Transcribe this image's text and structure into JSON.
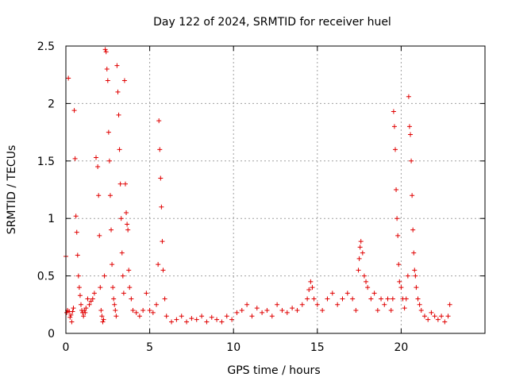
{
  "chart_data": {
    "type": "scatter",
    "title": "Day 122 of 2024, SRMTID for receiver huel",
    "xlabel": "GPS time / hours",
    "ylabel": "SRMTID / TECUs",
    "xlim": [
      0,
      25
    ],
    "ylim": [
      0,
      2.5
    ],
    "x_ticks": [
      0,
      5,
      10,
      15,
      20
    ],
    "x_tick_labels": [
      "0",
      "5",
      "10",
      "15",
      "20"
    ],
    "y_ticks": [
      0,
      0.5,
      1,
      1.5,
      2,
      2.5
    ],
    "y_tick_labels": [
      "0",
      "0.5",
      "1",
      "1.5",
      "2",
      "2.5"
    ],
    "grid": true,
    "legend": "none",
    "marker": "plus",
    "color": "#e00000",
    "series": [
      {
        "name": "huel",
        "x": [
          0.0,
          0.05,
          0.1,
          0.15,
          0.2,
          0.25,
          0.3,
          0.35,
          0.4,
          0.45,
          0.5,
          0.55,
          0.6,
          0.65,
          0.7,
          0.75,
          0.8,
          0.85,
          0.9,
          0.95,
          1.0,
          1.05,
          1.1,
          1.15,
          1.2,
          1.3,
          1.4,
          1.5,
          1.6,
          1.7,
          1.8,
          1.9,
          1.95,
          2.0,
          2.05,
          2.1,
          2.15,
          2.2,
          2.25,
          2.3,
          2.35,
          2.4,
          2.45,
          2.5,
          2.55,
          2.6,
          2.65,
          2.7,
          2.75,
          2.8,
          2.85,
          2.9,
          2.95,
          3.0,
          3.05,
          3.1,
          3.15,
          3.2,
          3.25,
          3.3,
          3.35,
          3.4,
          3.45,
          3.5,
          3.55,
          3.6,
          3.65,
          3.7,
          3.75,
          3.8,
          3.9,
          4.0,
          4.2,
          4.4,
          4.6,
          4.8,
          5.0,
          5.2,
          5.4,
          5.5,
          5.55,
          5.6,
          5.65,
          5.7,
          5.75,
          5.8,
          5.9,
          6.0,
          6.3,
          6.6,
          6.9,
          7.2,
          7.5,
          7.8,
          8.1,
          8.4,
          8.7,
          9.0,
          9.3,
          9.6,
          9.9,
          10.2,
          10.5,
          10.8,
          11.1,
          11.4,
          11.7,
          12.0,
          12.3,
          12.6,
          12.9,
          13.2,
          13.5,
          13.8,
          14.1,
          14.4,
          14.5,
          14.6,
          14.7,
          14.8,
          15.0,
          15.3,
          15.6,
          15.9,
          16.2,
          16.5,
          16.8,
          17.1,
          17.3,
          17.45,
          17.5,
          17.55,
          17.6,
          17.7,
          17.8,
          17.9,
          18.0,
          18.2,
          18.4,
          18.6,
          18.8,
          19.0,
          19.2,
          19.4,
          19.5,
          19.55,
          19.6,
          19.65,
          19.7,
          19.75,
          19.8,
          19.85,
          19.9,
          20.0,
          20.1,
          20.2,
          20.3,
          20.4,
          20.45,
          20.5,
          20.55,
          20.6,
          20.65,
          20.7,
          20.75,
          20.8,
          20.85,
          20.9,
          21.0,
          21.1,
          21.2,
          21.4,
          21.6,
          21.8,
          22.0,
          22.2,
          22.4,
          22.6,
          22.8,
          22.9
        ],
        "y": [
          0.67,
          0.18,
          0.2,
          2.22,
          0.19,
          0.14,
          0.16,
          0.1,
          0.19,
          0.22,
          1.94,
          1.52,
          1.02,
          0.88,
          0.68,
          0.5,
          0.4,
          0.33,
          0.25,
          0.2,
          0.18,
          0.15,
          0.2,
          0.18,
          0.22,
          0.3,
          0.25,
          0.28,
          0.3,
          0.35,
          1.53,
          1.45,
          1.2,
          0.85,
          0.4,
          0.2,
          0.15,
          0.1,
          0.12,
          0.5,
          2.47,
          2.45,
          2.3,
          2.2,
          1.75,
          1.5,
          1.2,
          0.9,
          0.6,
          0.4,
          0.3,
          0.25,
          0.2,
          0.15,
          2.33,
          2.1,
          1.9,
          1.6,
          1.3,
          1.0,
          0.7,
          0.5,
          0.35,
          2.2,
          1.3,
          1.05,
          0.95,
          0.9,
          0.55,
          0.4,
          0.3,
          0.2,
          0.18,
          0.15,
          0.2,
          0.35,
          0.2,
          0.18,
          0.25,
          0.6,
          1.85,
          1.6,
          1.35,
          1.1,
          0.8,
          0.55,
          0.3,
          0.15,
          0.1,
          0.12,
          0.15,
          0.1,
          0.13,
          0.12,
          0.15,
          0.1,
          0.14,
          0.12,
          0.1,
          0.15,
          0.12,
          0.18,
          0.2,
          0.25,
          0.15,
          0.22,
          0.18,
          0.2,
          0.15,
          0.25,
          0.2,
          0.18,
          0.22,
          0.2,
          0.25,
          0.3,
          0.38,
          0.45,
          0.4,
          0.3,
          0.25,
          0.2,
          0.3,
          0.35,
          0.25,
          0.3,
          0.35,
          0.3,
          0.2,
          0.55,
          0.65,
          0.75,
          0.8,
          0.7,
          0.5,
          0.45,
          0.4,
          0.3,
          0.35,
          0.2,
          0.3,
          0.25,
          0.3,
          0.2,
          0.3,
          1.93,
          1.8,
          1.6,
          1.25,
          1.0,
          0.85,
          0.6,
          0.45,
          0.4,
          0.3,
          0.22,
          0.3,
          0.5,
          2.06,
          1.8,
          1.73,
          1.5,
          1.2,
          0.9,
          0.7,
          0.55,
          0.5,
          0.4,
          0.3,
          0.25,
          0.2,
          0.15,
          0.12,
          0.18,
          0.15,
          0.12,
          0.15,
          0.1,
          0.15,
          0.25
        ]
      }
    ]
  }
}
